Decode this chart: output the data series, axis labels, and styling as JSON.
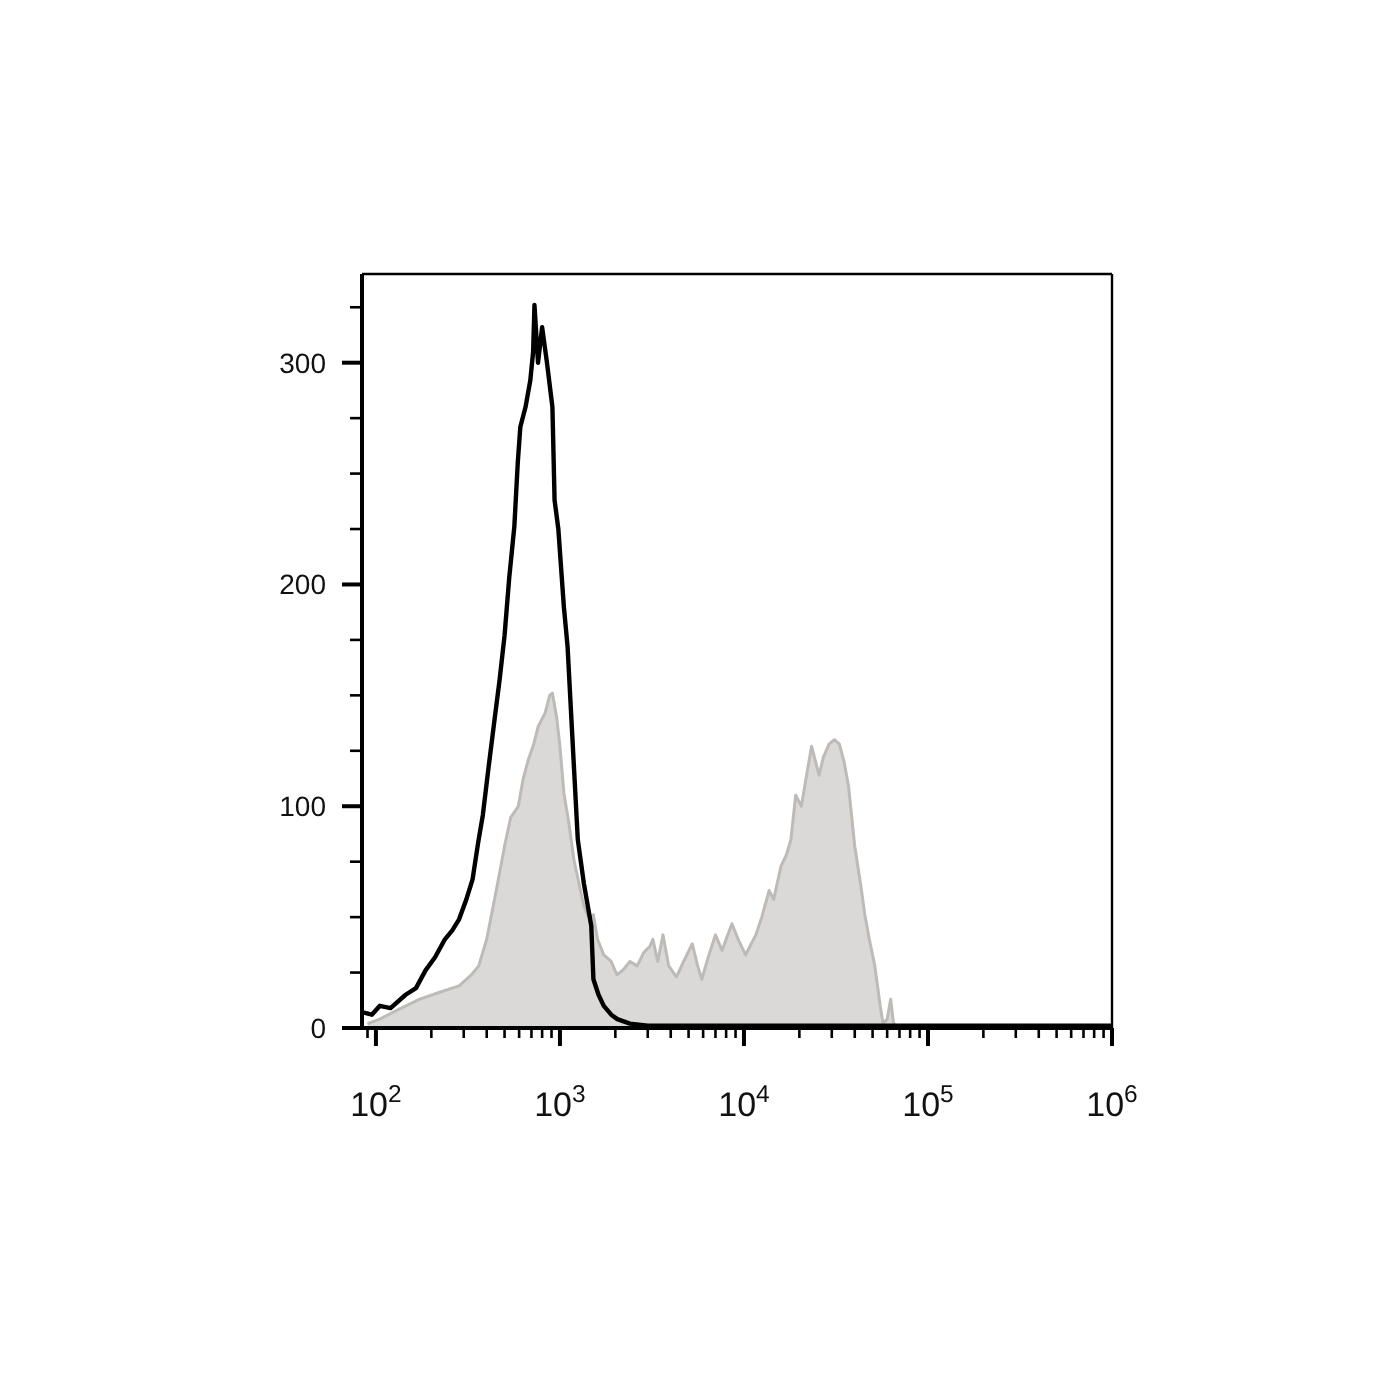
{
  "chart_data": {
    "type": "area",
    "log": "x",
    "xlim": [
      84,
      1000000
    ],
    "xticks": [
      {
        "value": 90,
        "label": null
      },
      {
        "value": 100,
        "label": "10$^{2}$"
      },
      {
        "value": 200,
        "label": null
      },
      {
        "value": 300,
        "label": null
      },
      {
        "value": 400,
        "label": null
      },
      {
        "value": 500,
        "label": null
      },
      {
        "value": 600,
        "label": null
      },
      {
        "value": 700,
        "label": null
      },
      {
        "value": 800,
        "label": null
      },
      {
        "value": 900,
        "label": null
      },
      {
        "value": 1000,
        "label": "10$^{3}$"
      },
      {
        "value": 2000,
        "label": null
      },
      {
        "value": 3000,
        "label": null
      },
      {
        "value": 4000,
        "label": null
      },
      {
        "value": 5000,
        "label": null
      },
      {
        "value": 6000,
        "label": null
      },
      {
        "value": 7000,
        "label": null
      },
      {
        "value": 8000,
        "label": null
      },
      {
        "value": 9000,
        "label": null
      },
      {
        "value": 10000,
        "label": "10$^{4}$"
      },
      {
        "value": 20000,
        "label": null
      },
      {
        "value": 30000,
        "label": null
      },
      {
        "value": 40000,
        "label": null
      },
      {
        "value": 50000,
        "label": null
      },
      {
        "value": 60000,
        "label": null
      },
      {
        "value": 70000,
        "label": null
      },
      {
        "value": 80000,
        "label": null
      },
      {
        "value": 90000,
        "label": null
      },
      {
        "value": 100000,
        "label": "10$^{5}$"
      },
      {
        "value": 200000,
        "label": null
      },
      {
        "value": 300000,
        "label": null
      },
      {
        "value": 400000,
        "label": null
      },
      {
        "value": 500000,
        "label": null
      },
      {
        "value": 600000,
        "label": null
      },
      {
        "value": 700000,
        "label": null
      },
      {
        "value": 800000,
        "label": null
      },
      {
        "value": 900000,
        "label": null
      },
      {
        "value": 1000000,
        "label": "10$^{6}$"
      }
    ],
    "ylim": [
      0,
      340
    ],
    "yticks": [
      0,
      {
        "value": 25,
        "label": null
      },
      {
        "value": 50,
        "label": null
      },
      {
        "value": 75,
        "label": null
      },
      100,
      {
        "value": 125,
        "label": null
      },
      {
        "value": 150,
        "label": null
      },
      {
        "value": 175,
        "label": null
      },
      200,
      {
        "value": 225,
        "label": null
      },
      {
        "value": 250,
        "label": null
      },
      {
        "value": 275,
        "label": null
      },
      300,
      {
        "value": 325,
        "label": null
      }
    ],
    "series": [
      {
        "color": "#bdbab7",
        "x": [
          90,
          105,
          130,
          173,
          220,
          283,
          330,
          362,
          400,
          441,
          470,
          500,
          540,
          594,
          630,
          673,
          720,
          762,
          830,
          880,
          910,
          960,
          1000,
          1050,
          1120,
          1190,
          1270,
          1350,
          1430,
          1520,
          1600,
          1730,
          1900,
          2040,
          2190,
          2400,
          2630,
          2850,
          3090,
          3200,
          3400,
          3630,
          3900,
          4300,
          4700,
          5240,
          5600,
          5900,
          6400,
          7000,
          7600,
          8600,
          9300,
          10200,
          11600,
          12500,
          13700,
          14500,
          15900,
          17000,
          18000,
          19100,
          20500,
          22000,
          23300,
          25600,
          27000,
          29000,
          31000,
          33000,
          35000,
          37000,
          40000,
          43000,
          45400,
          48000,
          51400,
          55000,
          57000,
          60000,
          62700,
          65000,
          70000
        ],
        "values": [
          2,
          4,
          8,
          13,
          16,
          19,
          24,
          28,
          40,
          58,
          70,
          82,
          95,
          100,
          112,
          121,
          128,
          136,
          142,
          150,
          151,
          140,
          127,
          106,
          92,
          76,
          65,
          55,
          50,
          51,
          40,
          33,
          30,
          24,
          26,
          30,
          28,
          34,
          37,
          40,
          30,
          42,
          28,
          23,
          30,
          38,
          28,
          22,
          32,
          42,
          35,
          47,
          40,
          33,
          42,
          50,
          62,
          58,
          73,
          78,
          85,
          105,
          100,
          115,
          127,
          114,
          122,
          128,
          130,
          128,
          120,
          109,
          82,
          65,
          51,
          40,
          28,
          10,
          2,
          4,
          13,
          2,
          0
        ]
      },
      {
        "type": "line",
        "color": "#000000",
        "x": [
          85,
          95,
          105,
          120,
          145,
          165,
          186,
          210,
          237,
          260,
          283,
          310,
          335,
          360,
          381,
          410,
          441,
          470,
          500,
          530,
          565,
          590,
          609,
          650,
          690,
          715,
          727,
          760,
          800,
          850,
          910,
          935,
          980,
          1050,
          1100,
          1170,
          1250,
          1350,
          1480,
          1520,
          1620,
          1730,
          1900,
          2050,
          2400,
          3000,
          1000000
        ],
        "values": [
          7,
          6,
          10,
          9,
          15,
          18,
          26,
          32,
          40,
          44,
          49,
          58,
          67,
          84,
          96,
          118,
          139,
          157,
          177,
          203,
          226,
          255,
          271,
          280,
          292,
          305,
          326,
          300,
          316,
          300,
          280,
          238,
          225,
          190,
          172,
          130,
          85,
          65,
          46,
          22,
          15,
          10,
          6,
          4,
          2,
          1,
          1
        ]
      }
    ]
  }
}
